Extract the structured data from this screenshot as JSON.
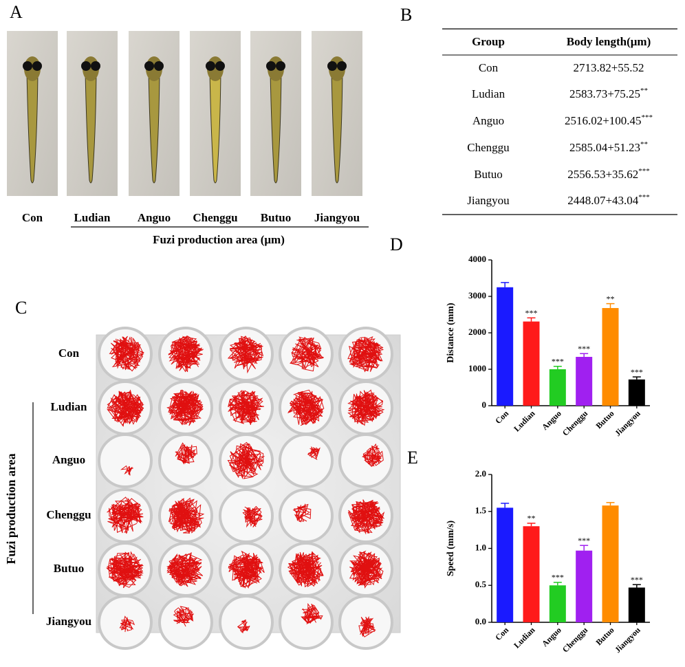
{
  "panels": {
    "A": {
      "label": "A",
      "groups": [
        "Con",
        "Ludian",
        "Anguo",
        "Chenggu",
        "Butuo",
        "Jiangyou"
      ],
      "caption": "Fuzi production area (μm)"
    },
    "B": {
      "label": "B",
      "header": [
        "Group",
        "Body length(μm)"
      ],
      "rows": [
        {
          "group": "Con",
          "length": "2713.82+55.52"
        },
        {
          "group": "Ludian",
          "length": "2583.73+75.25",
          "sig": "**"
        },
        {
          "group": "Anguo",
          "length": "2516.02+100.45",
          "sig": "***"
        },
        {
          "group": "Chenggu",
          "length": "2585.04+51.23",
          "sig": "**"
        },
        {
          "group": "Butuo",
          "length": "2556.53+35.62",
          "sig": "***"
        },
        {
          "group": "Jiangyou",
          "length": "2448.07+43.04",
          "sig": "***"
        }
      ]
    },
    "C": {
      "label": "C",
      "rows": [
        "Con",
        "Ludian",
        "Anguo",
        "Chenggu",
        "Butuo",
        "Jiangyou"
      ],
      "side_label": "Fuzi production area"
    }
  },
  "chart_data": [
    {
      "type": "bar",
      "label": "D",
      "ylabel": "Distance (mm)",
      "categories": [
        "Con",
        "Ludian",
        "Anguo",
        "Chenggu",
        "Butuo",
        "Jiangyou"
      ],
      "values": [
        3250,
        2310,
        1000,
        1340,
        2680,
        720
      ],
      "errors": [
        130,
        100,
        80,
        90,
        120,
        70
      ],
      "annotations": [
        null,
        "***",
        "***",
        "***",
        "**",
        "***"
      ],
      "colors": [
        "#1a1aff",
        "#ff1a1a",
        "#22cc22",
        "#a020f0",
        "#ff8c00",
        "#000000"
      ],
      "ylim": [
        0,
        4000
      ],
      "yticks": [
        0,
        1000,
        2000,
        3000,
        4000
      ]
    },
    {
      "type": "bar",
      "label": "E",
      "ylabel": "Speed (mm/s)",
      "categories": [
        "Con",
        "Ludian",
        "Anguo",
        "Chenggu",
        "Butuo",
        "Jiangyou"
      ],
      "values": [
        1.55,
        1.3,
        0.5,
        0.97,
        1.58,
        0.47
      ],
      "errors": [
        0.06,
        0.04,
        0.04,
        0.07,
        0.04,
        0.04
      ],
      "annotations": [
        null,
        "**",
        "***",
        "***",
        null,
        "***"
      ],
      "colors": [
        "#1a1aff",
        "#ff1a1a",
        "#22cc22",
        "#a020f0",
        "#ff8c00",
        "#000000"
      ],
      "ylim": [
        0,
        2
      ],
      "yticks": [
        {
          "value": 0,
          "label": "0.0"
        },
        {
          "value": 0.5,
          "label": "0.5"
        },
        {
          "value": 1,
          "label": "1.0"
        },
        {
          "value": 1.5,
          "label": "1.5"
        },
        {
          "value": 2,
          "label": "2.0"
        }
      ]
    }
  ]
}
